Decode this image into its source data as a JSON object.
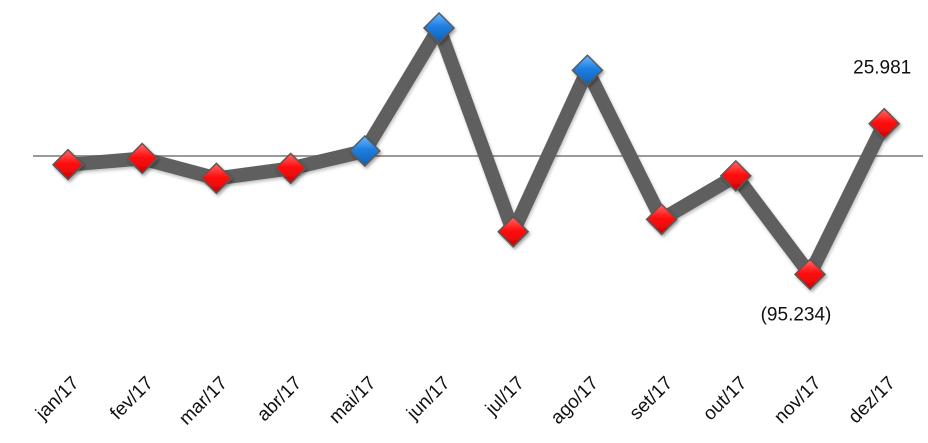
{
  "chart_data": {
    "type": "line",
    "categories": [
      "jan/17",
      "fev/17",
      "mar/17",
      "abr/17",
      "mai/17",
      "jun/17",
      "jul/17",
      "ago/17",
      "set/17",
      "out/17",
      "nov/17",
      "dez/17"
    ],
    "series": [
      {
        "values": [
          -7000,
          -2000,
          -18000,
          -10000,
          4000,
          103000,
          -61000,
          69000,
          -51000,
          -16000,
          -95234,
          25981
        ],
        "marker_colors": [
          "#ff0000",
          "#ff0000",
          "#ff0000",
          "#ff0000",
          "#1e7fe0",
          "#1e7fe0",
          "#ff0000",
          "#1e7fe0",
          "#ff0000",
          "#ff0000",
          "#ff0000",
          "#ff0000"
        ]
      }
    ],
    "data_labels": [
      {
        "index": 10,
        "text": "(95.234)",
        "position": "below"
      },
      {
        "index": 11,
        "text": "25.981",
        "position": "above"
      }
    ],
    "ylim": [
      -110000,
      115000
    ],
    "baseline": 0,
    "title": "",
    "xlabel": "",
    "ylabel": "",
    "grid": false,
    "legend": "none",
    "colors": {
      "line": "#5f5f5f",
      "negative_marker": "#ff0000",
      "positive_marker": "#1e7fe0",
      "baseline": "#9a9a9a"
    }
  }
}
